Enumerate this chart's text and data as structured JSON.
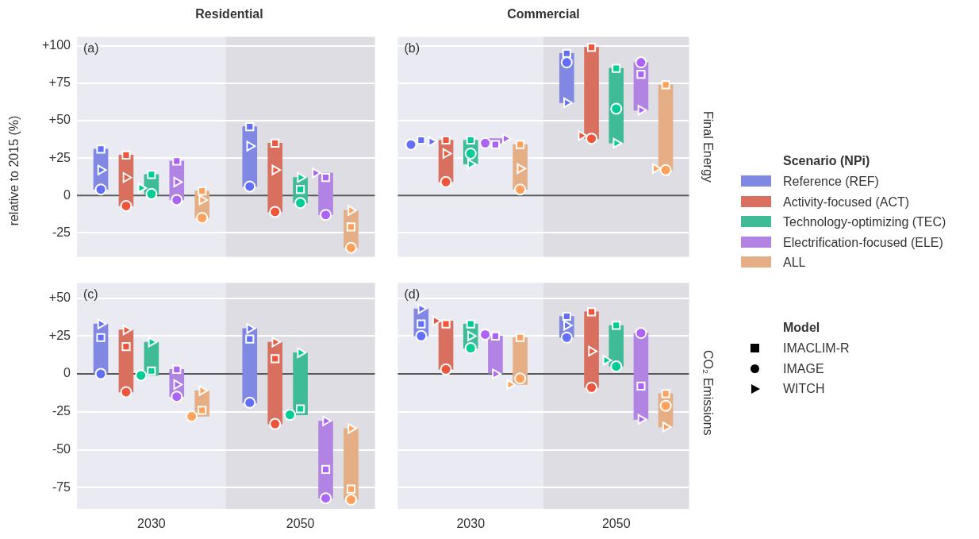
{
  "chart_data": [
    {
      "type": "bar",
      "title": "Residential",
      "ylabel": "relative to 2015 (%)",
      "legend_title": "Scenario (NPi)",
      "legend": "right",
      "annotations": [
        "(a)"
      ],
      "categories": [
        "2030",
        "2050"
      ],
      "ylim": [
        -41,
        106
      ],
      "yticks": [
        -25,
        0,
        {
          "value": 25,
          "label": "+25"
        },
        {
          "value": 50,
          "label": "+50"
        },
        {
          "value": 75,
          "label": "+75"
        },
        {
          "value": 100,
          "label": "+100"
        }
      ],
      "grid": "y",
      "tick_labels": "y",
      "bands": [
        {
          "axis": "x",
          "from": "2050",
          "to": "2050",
          "color": "#dddde3"
        }
      ],
      "ref_lines": [
        {
          "axis": "y",
          "value": 0,
          "color": "#595959"
        }
      ],
      "series": [
        {
          "name": "Reference (REF)",
          "color": "#8088e3",
          "base": [
            4,
            6
          ],
          "values": [
            27,
            40
          ]
        },
        {
          "type": "scatter",
          "marker": "square",
          "color": "#636efa",
          "values": [
            31,
            46
          ]
        },
        {
          "type": "scatter",
          "marker": "circle",
          "color": "#636efa",
          "values": [
            4,
            6
          ]
        },
        {
          "type": "scatter",
          "marker": "triangle",
          "color": "#636efa",
          "values": [
            17,
            33
          ]
        },
        {
          "name": "Activity-focused (ACT)",
          "color": "#d9705f",
          "base": [
            -7,
            -11
          ],
          "values": [
            34,
            46
          ]
        },
        {
          "type": "scatter",
          "marker": "square",
          "color": "#ef553b",
          "values": [
            27,
            35
          ]
        },
        {
          "type": "scatter",
          "marker": "circle",
          "color": "#ef553b",
          "values": [
            -7,
            -11
          ]
        },
        {
          "type": "scatter",
          "marker": "triangle",
          "color": "#ef553b",
          "values": [
            12,
            17
          ]
        },
        {
          "name": "Technology-optimizing (TEC)",
          "color": "#3fbb98",
          "base": [
            1,
            -5
          ],
          "values": [
            13,
            17
          ]
        },
        {
          "type": "scatter",
          "marker": "square",
          "color": "#00cc96",
          "values": [
            14,
            4
          ]
        },
        {
          "type": "scatter",
          "marker": "circle",
          "color": "#00cc96",
          "values": [
            1,
            -5
          ]
        },
        {
          "type": "scatter",
          "marker": "triangle",
          "color": "#00cc96",
          "values": [
            5,
            12
          ]
        },
        {
          "name": "Electrification-focused (ELE)",
          "color": "#b184e3",
          "base": [
            -3,
            -13
          ],
          "values": [
            26,
            28
          ]
        },
        {
          "type": "scatter",
          "marker": "square",
          "color": "#ab63fa",
          "values": [
            23,
            12
          ]
        },
        {
          "type": "scatter",
          "marker": "circle",
          "color": "#ab63fa",
          "values": [
            -3,
            -13
          ]
        },
        {
          "type": "scatter",
          "marker": "triangle",
          "color": "#ab63fa",
          "values": [
            9,
            15
          ]
        },
        {
          "name": "ALL",
          "color": "#e6ae85",
          "base": [
            -15,
            -35
          ],
          "values": [
            18,
            25
          ]
        },
        {
          "type": "scatter",
          "marker": "square",
          "color": "#ffa15a",
          "values": [
            3,
            -21
          ]
        },
        {
          "type": "scatter",
          "marker": "circle",
          "color": "#ffa15a",
          "values": [
            -15,
            -35
          ]
        },
        {
          "type": "scatter",
          "marker": "triangle",
          "color": "#ffa15a",
          "values": [
            -3,
            -10
          ]
        }
      ]
    },
    {
      "type": "bar",
      "title": "Commercial",
      "y2label": "Final Energy",
      "legend_title": "Model",
      "legend": "right",
      "annotations": [
        "(b)"
      ],
      "categories": [
        "2030",
        "2050"
      ],
      "ylim": [
        -41,
        106
      ],
      "yticks": [
        -25,
        0,
        25,
        50,
        75,
        100
      ],
      "grid": "y",
      "tick_labels": false,
      "bands": [
        {
          "axis": "x",
          "from": "2050",
          "to": "2050",
          "color": "#dddde3"
        }
      ],
      "ref_lines": [
        {
          "axis": "y",
          "value": 0,
          "color": "#595959"
        }
      ],
      "series": [
        {
          "color": "#8088e3",
          "base": [
            null,
            62
          ],
          "values": [
            null,
            33
          ]
        },
        {
          "type": "scatter",
          "name": "IMACLIM-R",
          "marker": "square",
          "color": "#636efa",
          "values": [
            37,
            95
          ]
        },
        {
          "type": "scatter",
          "name": "IMAGE",
          "marker": "circle",
          "color": "#636efa",
          "values": [
            34,
            89
          ]
        },
        {
          "type": "scatter",
          "name": "WITCH",
          "marker": "triangle",
          "color": "#636efa",
          "values": [
            36,
            62
          ]
        },
        {
          "color": "#d9705f",
          "base": [
            9,
            38
          ],
          "values": [
            28,
            61
          ]
        },
        {
          "type": "scatter",
          "marker": "square",
          "color": "#ef553b",
          "values": [
            37,
            99
          ]
        },
        {
          "type": "scatter",
          "marker": "circle",
          "color": "#ef553b",
          "values": [
            9,
            38
          ]
        },
        {
          "type": "scatter",
          "marker": "triangle",
          "color": "#ef553b",
          "values": [
            28,
            40
          ]
        },
        {
          "color": "#3fbb98",
          "base": [
            21,
            35
          ],
          "values": [
            16,
            50
          ]
        },
        {
          "type": "scatter",
          "marker": "square",
          "color": "#00cc96",
          "values": [
            37,
            85
          ]
        },
        {
          "type": "scatter",
          "marker": "circle",
          "color": "#00cc96",
          "values": [
            28,
            58
          ]
        },
        {
          "type": "scatter",
          "marker": "triangle",
          "color": "#00cc96",
          "values": [
            21,
            35
          ]
        },
        {
          "color": "#b184e3",
          "base": [
            35,
            57
          ],
          "values": [
            3,
            32
          ]
        },
        {
          "type": "scatter",
          "marker": "square",
          "color": "#ab63fa",
          "values": [
            34,
            81
          ]
        },
        {
          "type": "scatter",
          "marker": "circle",
          "color": "#ab63fa",
          "values": [
            35,
            89
          ]
        },
        {
          "type": "scatter",
          "marker": "triangle",
          "color": "#ab63fa",
          "values": [
            38,
            57
          ]
        },
        {
          "color": "#e6ae85",
          "base": [
            4,
            17
          ],
          "values": [
            30,
            57
          ]
        },
        {
          "type": "scatter",
          "marker": "square",
          "color": "#ffa15a",
          "values": [
            34,
            74
          ]
        },
        {
          "type": "scatter",
          "marker": "circle",
          "color": "#ffa15a",
          "values": [
            4,
            17
          ]
        },
        {
          "type": "scatter",
          "marker": "triangle",
          "color": "#ffa15a",
          "values": [
            18,
            18
          ]
        }
      ]
    },
    {
      "type": "bar",
      "annotations": [
        "(c)"
      ],
      "categories": [
        "2030",
        "2050"
      ],
      "ylim": [
        -89,
        60
      ],
      "yticks": [
        -75,
        -50,
        -25,
        0,
        {
          "value": 25,
          "label": "+25"
        },
        {
          "value": 50,
          "label": "+50"
        }
      ],
      "grid": "y",
      "bands": [
        {
          "axis": "x",
          "from": "2050",
          "to": "2050",
          "color": "#dddde3"
        }
      ],
      "ref_lines": [
        {
          "axis": "y",
          "value": 0,
          "color": "#595959"
        }
      ],
      "series": [
        {
          "color": "#8088e3",
          "base": [
            0,
            -19
          ],
          "values": [
            33,
            49
          ]
        },
        {
          "type": "scatter",
          "marker": "square",
          "color": "#636efa",
          "values": [
            24,
            23
          ]
        },
        {
          "type": "scatter",
          "marker": "circle",
          "color": "#636efa",
          "values": [
            0,
            -19
          ]
        },
        {
          "type": "scatter",
          "marker": "triangle",
          "color": "#636efa",
          "values": [
            33,
            30
          ]
        },
        {
          "color": "#d9705f",
          "base": [
            -12,
            -33
          ],
          "values": [
            41,
            54
          ]
        },
        {
          "type": "scatter",
          "marker": "square",
          "color": "#ef553b",
          "values": [
            18,
            10
          ]
        },
        {
          "type": "scatter",
          "marker": "circle",
          "color": "#ef553b",
          "values": [
            -12,
            -33
          ]
        },
        {
          "type": "scatter",
          "marker": "triangle",
          "color": "#ef553b",
          "values": [
            29,
            21
          ]
        },
        {
          "color": "#3fbb98",
          "base": [
            -1,
            -27
          ],
          "values": [
            22,
            41
          ]
        },
        {
          "type": "scatter",
          "marker": "square",
          "color": "#00cc96",
          "values": [
            2,
            -23
          ]
        },
        {
          "type": "scatter",
          "marker": "circle",
          "color": "#00cc96",
          "values": [
            -1,
            -27
          ]
        },
        {
          "type": "scatter",
          "marker": "triangle",
          "color": "#00cc96",
          "values": [
            21,
            14
          ]
        },
        {
          "color": "#b184e3",
          "base": [
            -15,
            -82
          ],
          "values": [
            18,
            51
          ]
        },
        {
          "type": "scatter",
          "marker": "square",
          "color": "#ab63fa",
          "values": [
            3,
            -63
          ]
        },
        {
          "type": "scatter",
          "marker": "circle",
          "color": "#ab63fa",
          "values": [
            -15,
            -82
          ]
        },
        {
          "type": "scatter",
          "marker": "triangle",
          "color": "#ab63fa",
          "values": [
            -7,
            -31
          ]
        },
        {
          "color": "#e6ae85",
          "base": [
            -28,
            -83
          ],
          "values": [
            17,
            47
          ]
        },
        {
          "type": "scatter",
          "marker": "square",
          "color": "#ffa15a",
          "values": [
            -24,
            -76
          ]
        },
        {
          "type": "scatter",
          "marker": "circle",
          "color": "#ffa15a",
          "values": [
            -28,
            -83
          ]
        },
        {
          "type": "scatter",
          "marker": "triangle",
          "color": "#ffa15a",
          "values": [
            -11,
            -36
          ]
        }
      ]
    },
    {
      "type": "bar",
      "y2label": "CO₂ Emissions",
      "annotations": [
        "(d)"
      ],
      "categories": [
        "2030",
        "2050"
      ],
      "ylim": [
        -89,
        60
      ],
      "yticks": [
        -75,
        -50,
        -25,
        0,
        25,
        50
      ],
      "grid": "y",
      "tick_labels": "x",
      "bands": [
        {
          "axis": "x",
          "from": "2050",
          "to": "2050",
          "color": "#dddde3"
        }
      ],
      "ref_lines": [
        {
          "axis": "y",
          "value": 0,
          "color": "#595959"
        }
      ],
      "series": [
        {
          "color": "#8088e3",
          "base": [
            25,
            24
          ],
          "values": [
            18,
            14
          ]
        },
        {
          "type": "scatter",
          "marker": "square",
          "color": "#636efa",
          "values": [
            33,
            38
          ]
        },
        {
          "type": "scatter",
          "marker": "circle",
          "color": "#636efa",
          "values": [
            25,
            24
          ]
        },
        {
          "type": "scatter",
          "marker": "triangle",
          "color": "#636efa",
          "values": [
            43,
            32
          ]
        },
        {
          "color": "#d9705f",
          "base": [
            3,
            -9
          ],
          "values": [
            32,
            50
          ]
        },
        {
          "type": "scatter",
          "marker": "square",
          "color": "#ef553b",
          "values": [
            33,
            41
          ]
        },
        {
          "type": "scatter",
          "marker": "circle",
          "color": "#ef553b",
          "values": [
            3,
            -9
          ]
        },
        {
          "type": "scatter",
          "marker": "triangle",
          "color": "#ef553b",
          "values": [
            35,
            15
          ]
        },
        {
          "color": "#3fbb98",
          "base": [
            17,
            5
          ],
          "values": [
            16,
            27
          ]
        },
        {
          "type": "scatter",
          "marker": "square",
          "color": "#00cc96",
          "values": [
            33,
            32
          ]
        },
        {
          "type": "scatter",
          "marker": "circle",
          "color": "#00cc96",
          "values": [
            17,
            5
          ]
        },
        {
          "type": "scatter",
          "marker": "triangle",
          "color": "#00cc96",
          "values": [
            25,
            9
          ]
        },
        {
          "color": "#b184e3",
          "base": [
            0,
            -30
          ],
          "values": [
            25,
            57
          ]
        },
        {
          "type": "scatter",
          "marker": "square",
          "color": "#ab63fa",
          "values": [
            25,
            -8
          ]
        },
        {
          "type": "scatter",
          "marker": "circle",
          "color": "#ab63fa",
          "values": [
            26,
            27
          ]
        },
        {
          "type": "scatter",
          "marker": "triangle",
          "color": "#ab63fa",
          "values": [
            0,
            -30
          ]
        },
        {
          "color": "#e6ae85",
          "base": [
            -7,
            -35
          ],
          "values": [
            31,
            22
          ]
        },
        {
          "type": "scatter",
          "marker": "square",
          "color": "#ffa15a",
          "values": [
            24,
            -13
          ]
        },
        {
          "type": "scatter",
          "marker": "circle",
          "color": "#ffa15a",
          "values": [
            -3,
            -21
          ]
        },
        {
          "type": "scatter",
          "marker": "triangle",
          "color": "#ffa15a",
          "values": [
            -7,
            -35
          ]
        }
      ]
    }
  ]
}
